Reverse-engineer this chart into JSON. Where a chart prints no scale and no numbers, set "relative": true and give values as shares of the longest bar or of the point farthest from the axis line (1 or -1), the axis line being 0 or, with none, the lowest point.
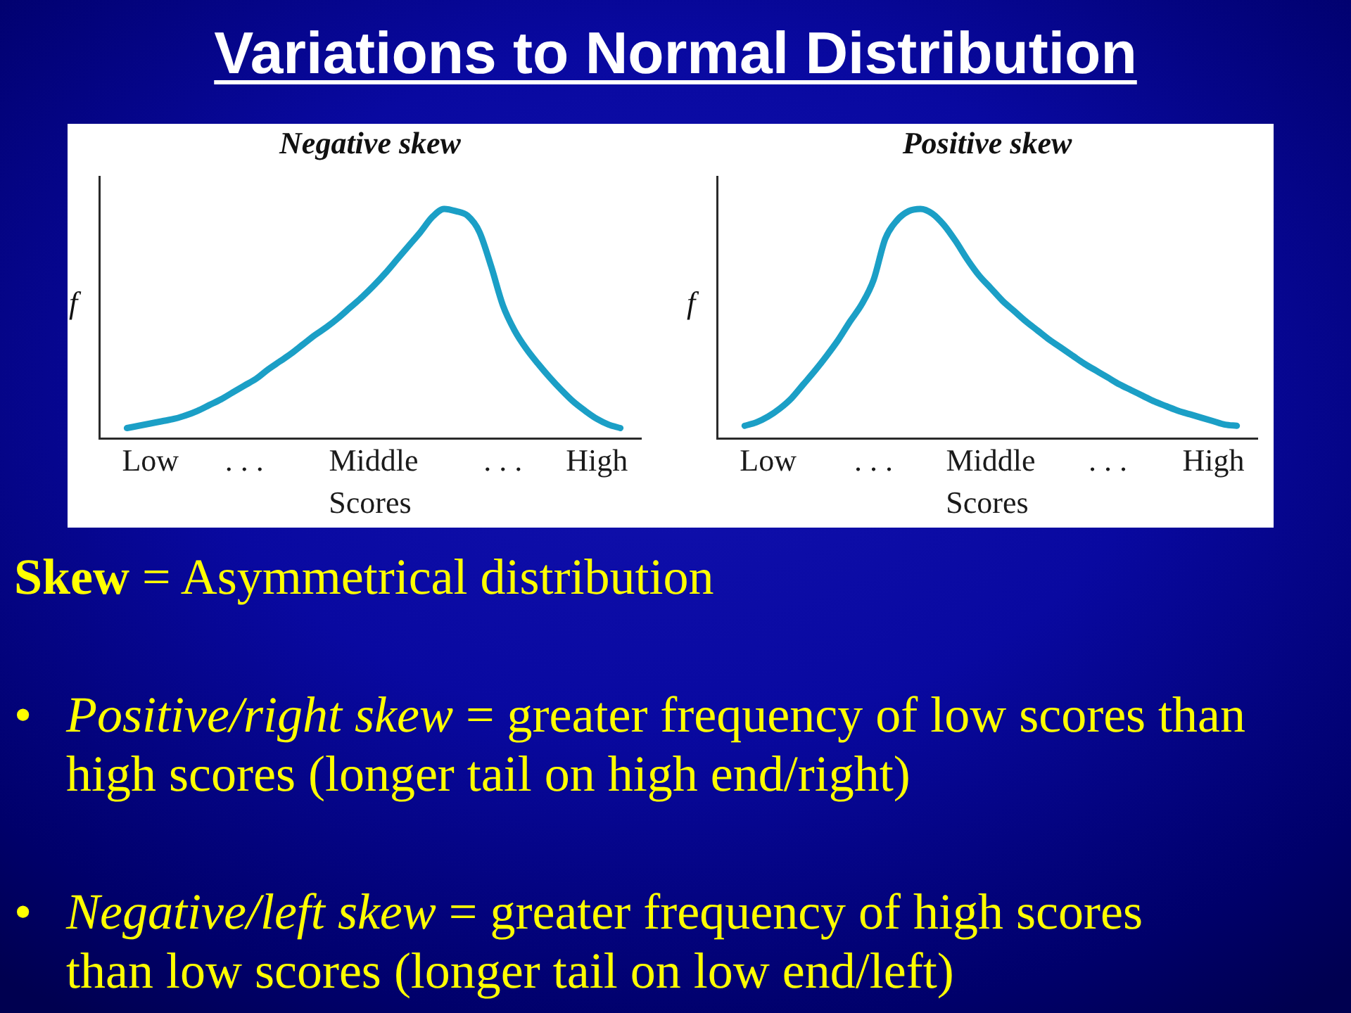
{
  "chart_data": [
    {
      "type": "other",
      "title": "Variations to Normal Distribution",
      "annotations": [
        "Skew",
        "= Asymmetrical distribution",
        "•",
        "Positive/right skew",
        "= greater frequency of low scores than\nhigh scores (longer tail on high end/right)",
        "•",
        "Negative/left skew",
        "= greater frequency of high scores\nthan low scores (longer tail on low end/left)"
      ]
    },
    {
      "type": "line",
      "title": "Negative skew",
      "xlabel": "Scores",
      "ylabel": "f",
      "relative": true,
      "marker": "none",
      "categories": [
        null,
        null,
        "Low",
        null,
        null,
        null,
        null,
        null,
        null,
        null,
        ". . .",
        null,
        null,
        null,
        null,
        null,
        null,
        null,
        null,
        null,
        null,
        "Middle",
        null,
        null,
        null,
        null,
        null,
        null,
        null,
        null,
        null,
        null,
        ". . .",
        null,
        null,
        null,
        null,
        null,
        null,
        null,
        "High",
        null,
        null
      ],
      "color": "#1b9fc6",
      "values": [
        0.045,
        0.055,
        0.065,
        0.075,
        0.085,
        0.1,
        0.12,
        0.145,
        0.17,
        0.2,
        0.23,
        0.26,
        0.3,
        0.335,
        0.37,
        0.41,
        0.45,
        0.485,
        0.525,
        0.57,
        0.615,
        0.665,
        0.72,
        0.78,
        0.84,
        0.9,
        0.965,
        1,
        0.99,
        0.97,
        0.9,
        0.75,
        0.58,
        0.47,
        0.39,
        0.325,
        0.265,
        0.21,
        0.16,
        0.12,
        0.085,
        0.06,
        0.045
      ]
    },
    {
      "type": "line",
      "title": "Positive skew",
      "xlabel": "Scores",
      "ylabel": "f",
      "relative": true,
      "marker": "none",
      "categories": [
        null,
        null,
        "Low",
        null,
        null,
        null,
        null,
        null,
        null,
        null,
        null,
        ". . .",
        null,
        null,
        null,
        null,
        null,
        null,
        null,
        null,
        null,
        "Middle",
        null,
        null,
        null,
        null,
        null,
        null,
        null,
        null,
        null,
        ". . .",
        null,
        null,
        null,
        null,
        null,
        null,
        null,
        null,
        "High",
        null,
        null
      ],
      "color": "#1b9fc6",
      "values": [
        0.055,
        0.07,
        0.095,
        0.13,
        0.175,
        0.235,
        0.295,
        0.36,
        0.43,
        0.51,
        0.585,
        0.69,
        0.87,
        0.95,
        0.99,
        1,
        0.98,
        0.93,
        0.86,
        0.78,
        0.71,
        0.655,
        0.6,
        0.555,
        0.51,
        0.47,
        0.43,
        0.395,
        0.36,
        0.325,
        0.295,
        0.265,
        0.235,
        0.21,
        0.185,
        0.16,
        0.14,
        0.12,
        0.105,
        0.09,
        0.075,
        0.06,
        0.055
      ]
    }
  ]
}
